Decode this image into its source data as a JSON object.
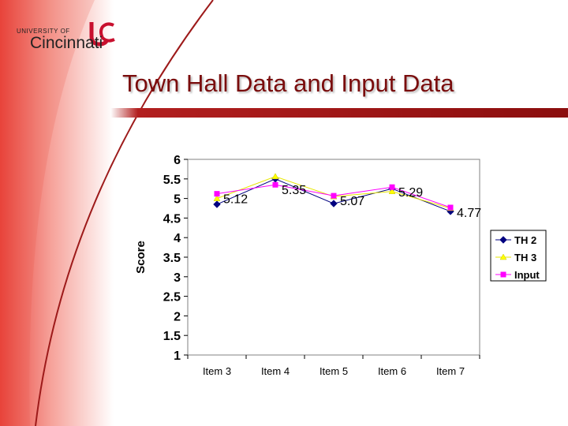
{
  "logo": {
    "small": "UNIVERSITY OF",
    "big": "Cincinnati"
  },
  "slide": {
    "title": "Town Hall Data and Input Data"
  },
  "colors": {
    "accent": "#8b0e0e",
    "th2": "#000080",
    "th3": "#ffff00",
    "input": "#ff00ff",
    "plot_bg": "#ffffff"
  },
  "chart_data": {
    "type": "line",
    "title": "",
    "xlabel": "",
    "ylabel": "Score",
    "categories": [
      "Item 3",
      "Item 4",
      "Item 5",
      "Item 6",
      "Item 7"
    ],
    "ylim": [
      1,
      6
    ],
    "yticks": [
      "1",
      "1.5",
      "2",
      "2.5",
      "3",
      "3.5",
      "4",
      "4.5",
      "5",
      "5.5",
      "6"
    ],
    "grid": false,
    "legend_position": "right",
    "series": [
      {
        "name": "TH 2",
        "values": [
          4.85,
          5.5,
          4.87,
          5.25,
          4.67
        ],
        "color": "#000080",
        "marker": "diamond"
      },
      {
        "name": "TH 3",
        "values": [
          5.0,
          5.56,
          5.05,
          5.18,
          4.75
        ],
        "color": "#ffff00",
        "marker": "triangle"
      },
      {
        "name": "Input",
        "values": [
          5.12,
          5.35,
          5.07,
          5.29,
          4.77
        ],
        "color": "#ff00ff",
        "marker": "square"
      }
    ],
    "data_labels": [
      "5.12",
      "5.35",
      "5.07",
      "5.29",
      "4.77"
    ]
  }
}
